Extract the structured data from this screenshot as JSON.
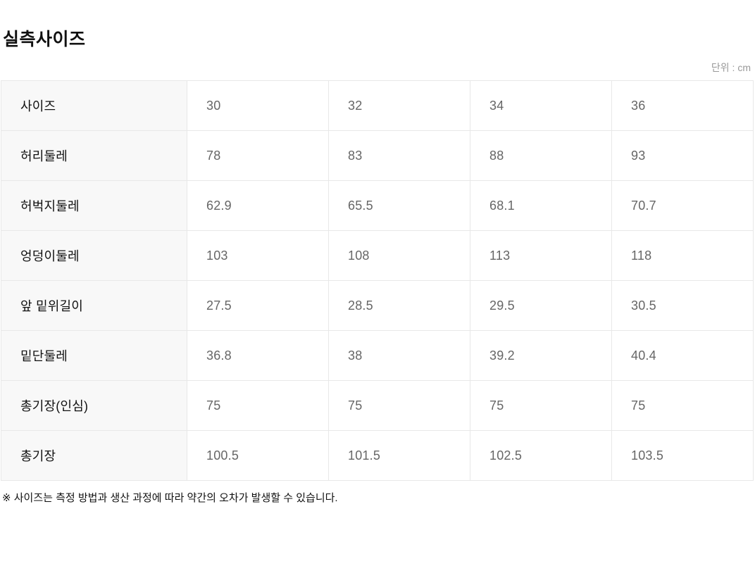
{
  "page": {
    "title": "실측사이즈",
    "unit_label": "단위 : cm",
    "footnote": "※ 사이즈는 측정 방법과 생산 과정에 따라 약간의 오차가 발생할 수 있습니다."
  },
  "size_table": {
    "unit": "cm",
    "rows": [
      {
        "label": "사이즈",
        "values": [
          "30",
          "32",
          "34",
          "36"
        ]
      },
      {
        "label": "허리둘레",
        "values": [
          "78",
          "83",
          "88",
          "93"
        ]
      },
      {
        "label": "허벅지둘레",
        "values": [
          "62.9",
          "65.5",
          "68.1",
          "70.7"
        ]
      },
      {
        "label": "엉덩이둘레",
        "values": [
          "103",
          "108",
          "113",
          "118"
        ]
      },
      {
        "label": "앞 밑위길이",
        "values": [
          "27.5",
          "28.5",
          "29.5",
          "30.5"
        ]
      },
      {
        "label": "밑단둘레",
        "values": [
          "36.8",
          "38",
          "39.2",
          "40.4"
        ]
      },
      {
        "label": "총기장(인심)",
        "values": [
          "75",
          "75",
          "75",
          "75"
        ]
      },
      {
        "label": "총기장",
        "values": [
          "100.5",
          "101.5",
          "102.5",
          "103.5"
        ]
      }
    ]
  },
  "colors": {
    "label_cell_background": "#f8f8f8",
    "border": "#e8e8e8",
    "label_text": "#111111",
    "value_text": "#666666",
    "unit_text": "#999999"
  }
}
